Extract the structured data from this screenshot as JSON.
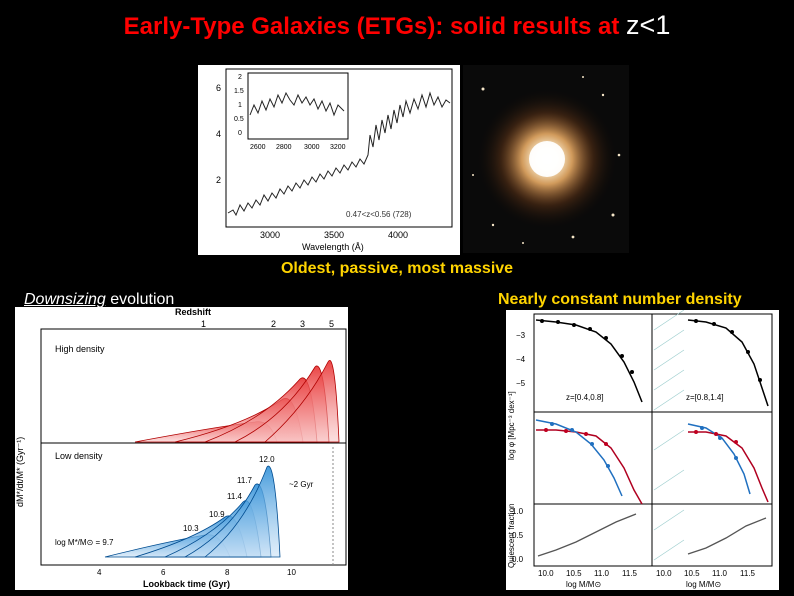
{
  "title": {
    "main": "Early-Type Galaxies (ETGs): solid results at ",
    "z": "z<1"
  },
  "captions": {
    "middle": "Oldest, passive, most massive",
    "left_em": "Downsizing",
    "left_rest": " evolution",
    "right": "Nearly constant number density"
  },
  "spectrum": {
    "xlabel": "Wavelength (Å)",
    "xticks": [
      "3000",
      "3500",
      "4000"
    ],
    "yticks": [
      "2",
      "4",
      "6"
    ],
    "inset_xticks": [
      "2600",
      "2800",
      "3000",
      "3200"
    ],
    "inset_yticks": [
      "0",
      "0.5",
      "1",
      "1.5",
      "2"
    ],
    "annotation": "0.47<z<0.56 (728)"
  },
  "downsizing": {
    "top_label": "Redshift",
    "redshift_ticks": [
      "1",
      "2",
      "3",
      "5"
    ],
    "xlabel": "Lookback time (Gyr)",
    "ylabel": "dM*/dt/M* (Gyr⁻¹)",
    "high_density": "High density",
    "low_density": "Low density",
    "mass_label": "log M*/M⊙ = 9.7",
    "mass_values": [
      "10.3",
      "10.9",
      "11.4",
      "11.7",
      "12.0"
    ],
    "delay": "~2 Gyr",
    "xticks": [
      "4",
      "6",
      "8",
      "10"
    ]
  },
  "massfunction": {
    "ylabel_top": "log φ [Mpc⁻³ dex⁻¹]",
    "ylabel_bottom": "Quiescent fraction",
    "z_left": "z=[0.4,0.8]",
    "z_right": "z=[0.8,1.4]",
    "xticks": [
      "10.0",
      "10.5",
      "11.0",
      "11.5"
    ],
    "xlabel": "log M/M⊙",
    "yticks_top": [
      "−3",
      "−4",
      "−5"
    ],
    "yticks_bot": [
      "1.0",
      "0.5",
      "0.0"
    ]
  }
}
